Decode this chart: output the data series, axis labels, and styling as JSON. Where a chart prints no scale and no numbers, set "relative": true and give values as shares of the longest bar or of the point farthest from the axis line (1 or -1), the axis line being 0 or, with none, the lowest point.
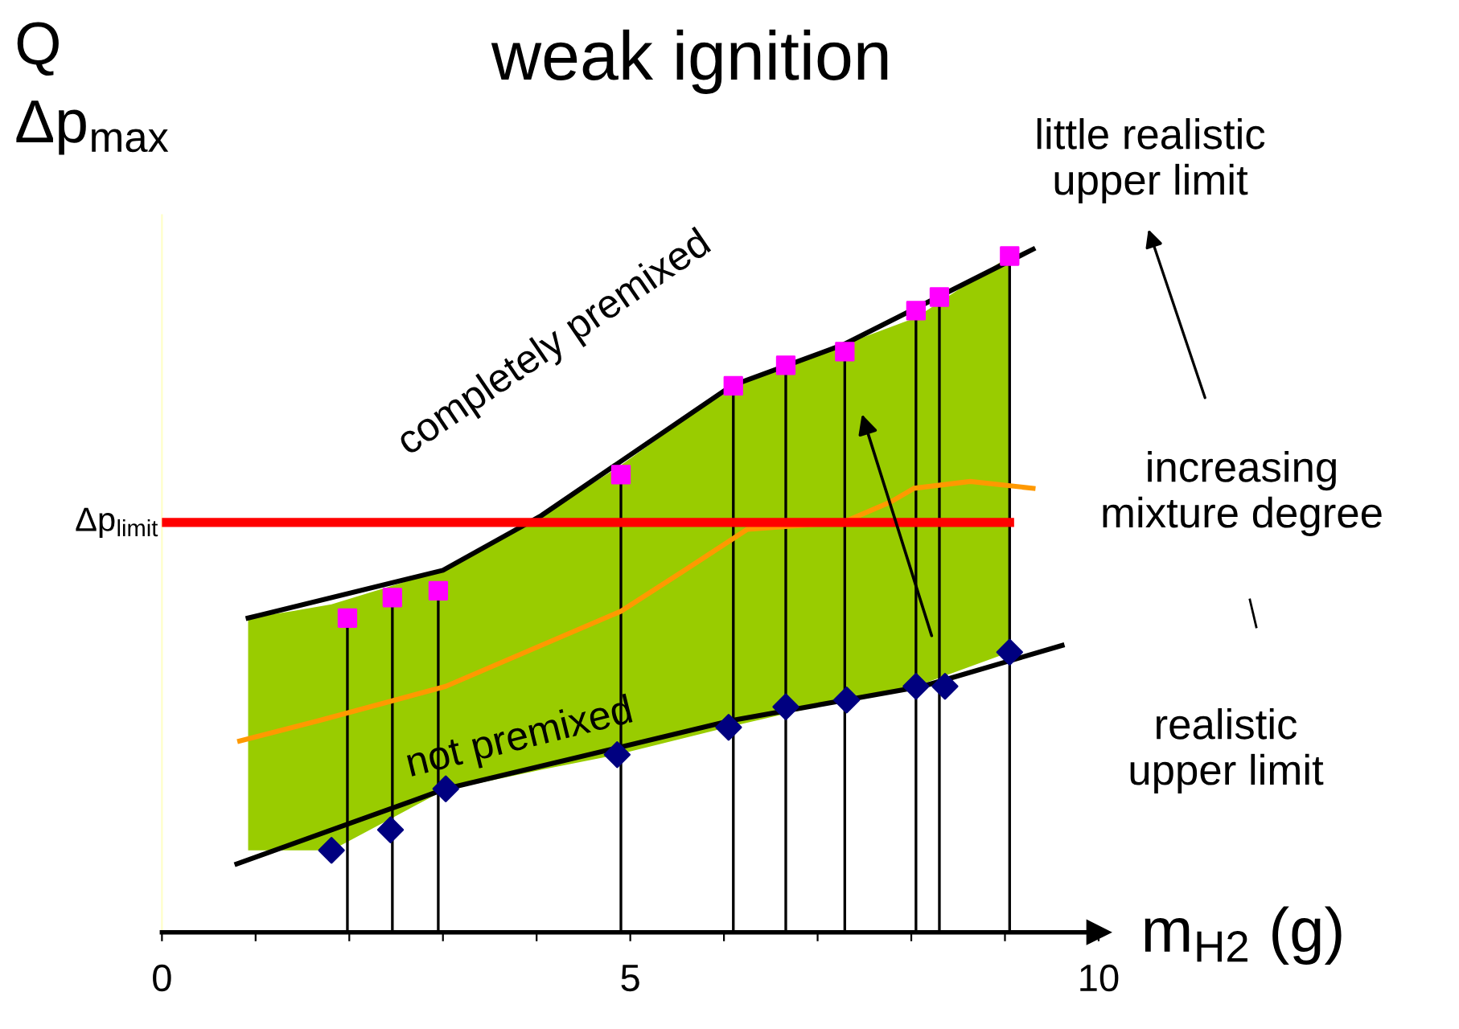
{
  "chart_data": {
    "type": "line",
    "title": "weak ignition",
    "ylabel": "Q\nΔp$_{max}$",
    "xlabel": "m$_{H2}$ (g)",
    "relative": true,
    "xlim": [
      0,
      10
    ],
    "xticks": [
      0,
      {
        "value": 1,
        "label": null
      },
      {
        "value": 2,
        "label": null
      },
      {
        "value": 3,
        "label": null
      },
      {
        "value": 4,
        "label": null
      },
      5,
      {
        "value": 6,
        "label": null
      },
      {
        "value": 7,
        "label": null
      },
      {
        "value": 8,
        "label": null
      },
      {
        "value": 9,
        "label": null
      },
      10
    ],
    "tick_labels": "x",
    "grid": false,
    "series": [
      {
        "type": "area",
        "color": "#99cc00",
        "x": [
          0.92,
          1.39,
          1.81,
          3.0,
          4.05,
          4.86,
          6.08,
          7.27,
          8.05,
          9.05
        ],
        "values": [
          0.46,
          0.47,
          0.48,
          0.53,
          0.61,
          0.68,
          0.8,
          0.86,
          0.9,
          0.99
        ]
      },
      {
        "name": "completely premixed",
        "color": "#000000",
        "x": [
          0.92,
          3.0,
          4.05,
          6.08,
          7.27,
          9.3
        ],
        "values": [
          0.46,
          0.53,
          0.61,
          0.8,
          0.86,
          1.0
        ]
      },
      {
        "name": "not premixed",
        "color": "#000000",
        "x": [
          0.8,
          3.03,
          6.08,
          8.12,
          9.61
        ],
        "values": [
          0.1,
          0.21,
          0.31,
          0.36,
          0.42
        ]
      },
      {
        "color": "#ff9900",
        "x": [
          0.83,
          1.68,
          3.03,
          4.05,
          4.9,
          5.58,
          6.25,
          7.27,
          7.78,
          8.03,
          8.63,
          9.3
        ],
        "values": [
          0.28,
          0.31,
          0.36,
          0.42,
          0.47,
          0.53,
          0.59,
          0.6,
          0.63,
          0.65,
          0.66,
          0.65
        ]
      },
      {
        "type": "lollipop",
        "marker": "square",
        "color": "#ff00ff",
        "x": [
          1.98,
          2.46,
          2.95,
          4.9,
          6.1,
          6.66,
          7.29,
          8.05,
          8.3,
          9.05
        ],
        "values": [
          0.46,
          0.49,
          0.5,
          0.67,
          0.8,
          0.83,
          0.85,
          0.91,
          0.93,
          0.99
        ]
      },
      {
        "type": "scatter",
        "marker": "diamond",
        "color": "#000080",
        "x": [
          1.81,
          2.44,
          3.03,
          4.86,
          6.05,
          6.66,
          7.31,
          8.05,
          8.36,
          9.05
        ],
        "values": [
          0.12,
          0.15,
          0.21,
          0.26,
          0.3,
          0.33,
          0.34,
          0.36,
          0.36,
          0.41
        ]
      }
    ],
    "ref_lines": [
      {
        "axis": "y",
        "value": 0.6,
        "label": "Δp$_{limit}$",
        "color": "#ff0000"
      }
    ],
    "annotations": [
      "little realistic\nupper limit",
      "increasing\nmixture degree",
      "realistic\nupper limit"
    ]
  }
}
